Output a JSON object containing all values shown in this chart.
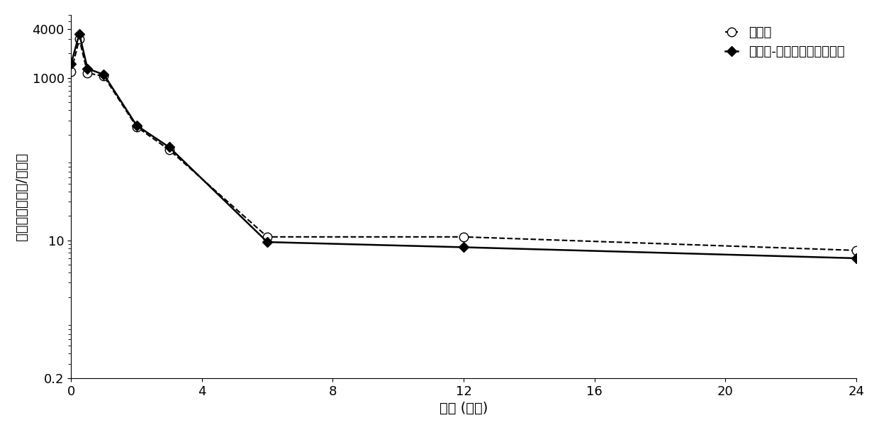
{
  "commercial_x": [
    0,
    0.25,
    0.5,
    1,
    2,
    3,
    6,
    12,
    24
  ],
  "commercial_y": [
    1200,
    3000,
    1150,
    1050,
    250,
    130,
    11,
    11,
    7.5
  ],
  "conjugate_x": [
    0,
    0.25,
    0.5,
    1,
    2,
    3,
    6,
    12,
    24
  ],
  "conjugate_y": [
    1500,
    3500,
    1300,
    1100,
    260,
    140,
    9.5,
    8.2,
    6.0
  ],
  "xlabel": "时间 (小时)",
  "ylabel": "对数浓度（纳克/毫升）",
  "legend_commercial": "商业的",
  "legend_conjugate": "聚合物-碳水化合物的缀合物",
  "xlim": [
    0,
    24
  ],
  "ylim_log": [
    0.2,
    6000
  ],
  "xticks": [
    0,
    4,
    8,
    12,
    16,
    20,
    24
  ],
  "ytick_vals": [
    0.2,
    10,
    1000,
    4000
  ],
  "ytick_labels": [
    "0.2",
    "10",
    "1000",
    "4000"
  ],
  "background_color": "#ffffff",
  "line_color": "#000000",
  "fontsize_label": 14,
  "fontsize_tick": 13,
  "fontsize_legend": 13
}
